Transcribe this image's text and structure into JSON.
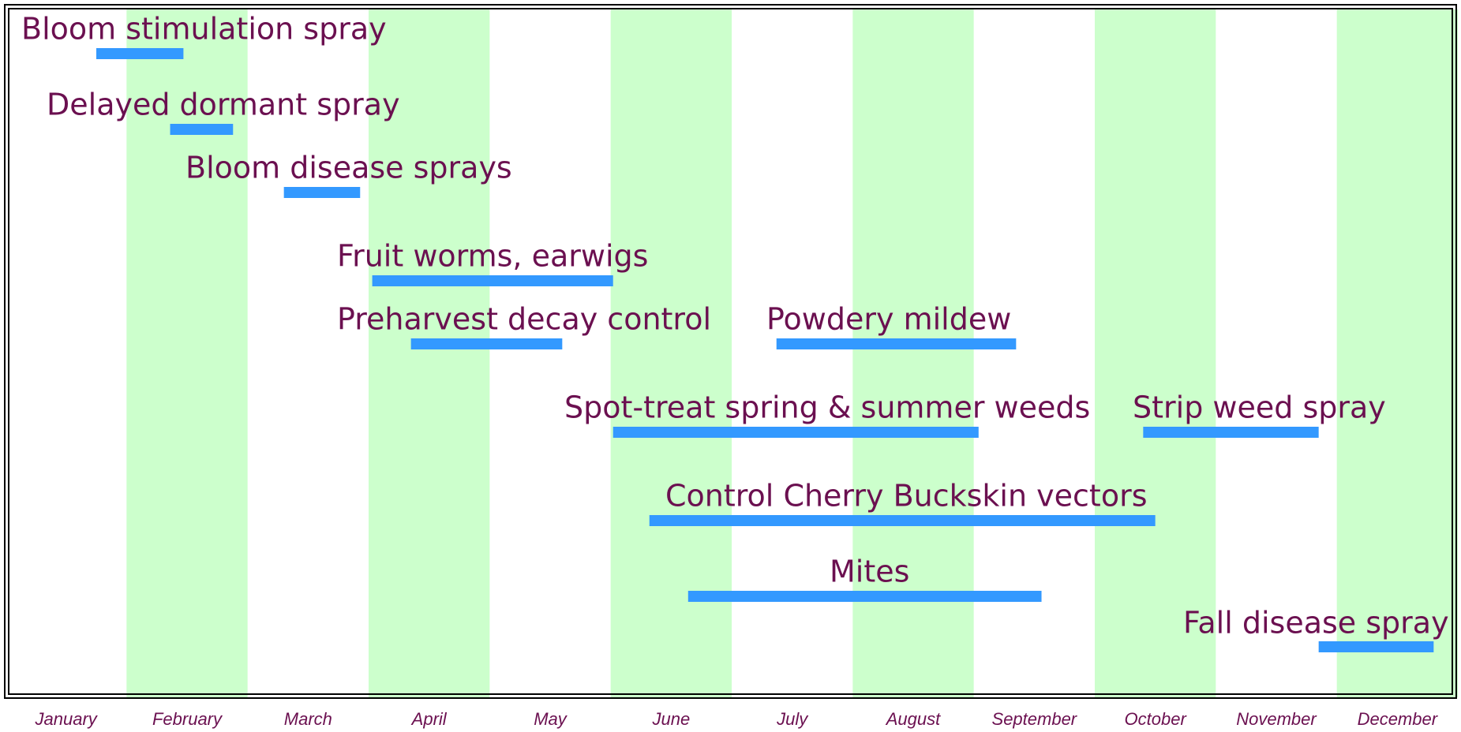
{
  "chart_data": {
    "type": "gantt",
    "categories": [
      "January",
      "February",
      "March",
      "April",
      "May",
      "June",
      "July",
      "August",
      "September",
      "October",
      "November",
      "December"
    ],
    "xlim": [
      0,
      12
    ],
    "tasks": [
      {
        "name": "Bloom stimulation spray",
        "start": 0.75,
        "end": 1.47
      },
      {
        "name": "Delayed dormant spray",
        "start": 1.36,
        "end": 1.88
      },
      {
        "name": "Bloom disease sprays",
        "start": 2.3,
        "end": 2.93
      },
      {
        "name": "Fruit worms, earwigs",
        "start": 3.03,
        "end": 5.02
      },
      {
        "name": "Preharvest decay control",
        "start": 3.35,
        "end": 4.6
      },
      {
        "name": "Powdery mildew",
        "start": 6.37,
        "end": 8.35
      },
      {
        "name": "Spot-treat spring & summer weeds",
        "start": 5.02,
        "end": 8.04
      },
      {
        "name": "Strip weed spray",
        "start": 9.4,
        "end": 10.85
      },
      {
        "name": "Control Cherry Buckskin vectors",
        "start": 5.32,
        "end": 9.5
      },
      {
        "name": "Mites",
        "start": 5.64,
        "end": 8.56
      },
      {
        "name": "Fall disease spray",
        "start": 10.85,
        "end": 11.8
      }
    ],
    "color": "#3399ff",
    "band_color": "#ccffcc",
    "text_color": "#6b1050"
  }
}
